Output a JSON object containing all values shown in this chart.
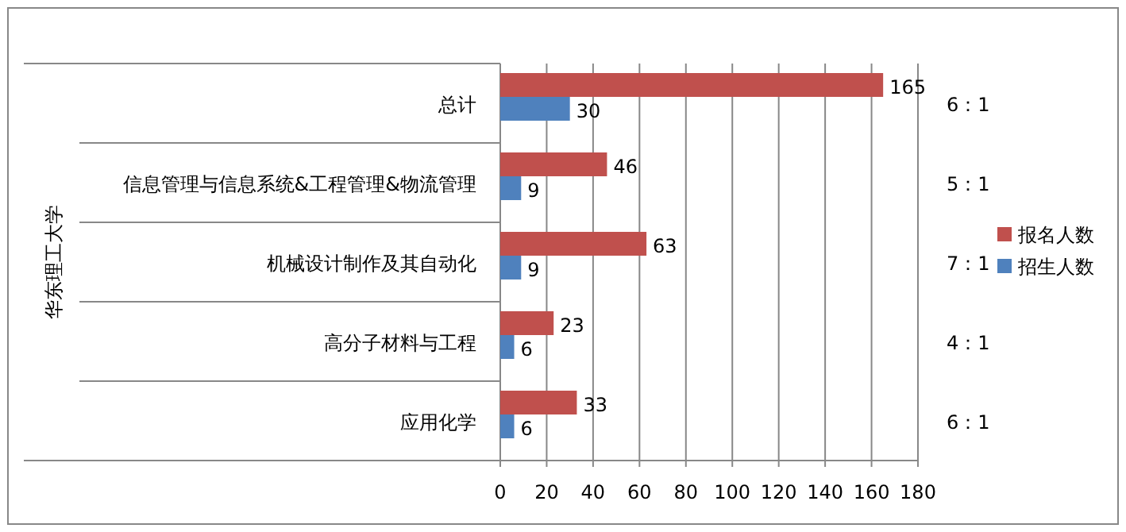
{
  "chart_data": {
    "type": "bar",
    "orientation": "horizontal",
    "ylabel": "华东理工大学",
    "categories": [
      "总计",
      "信息管理与信息系统&工程管理&物流管理",
      "机械设计制作及其自动化",
      "高分子材料与工程",
      "应用化学"
    ],
    "series": [
      {
        "name": "报名人数",
        "color": "#c0504d",
        "values": [
          165,
          46,
          63,
          23,
          33
        ]
      },
      {
        "name": "招生人数",
        "color": "#4f81bd",
        "values": [
          30,
          9,
          9,
          6,
          6
        ]
      }
    ],
    "data_labels": true,
    "xlim": [
      0,
      180
    ],
    "xticks": [
      0,
      20,
      40,
      60,
      80,
      100,
      120,
      140,
      160,
      180
    ],
    "grid": "x",
    "legend": "right",
    "annotations": [
      "6：1",
      "5：1",
      "7：1",
      "4：1",
      "6：1"
    ]
  }
}
